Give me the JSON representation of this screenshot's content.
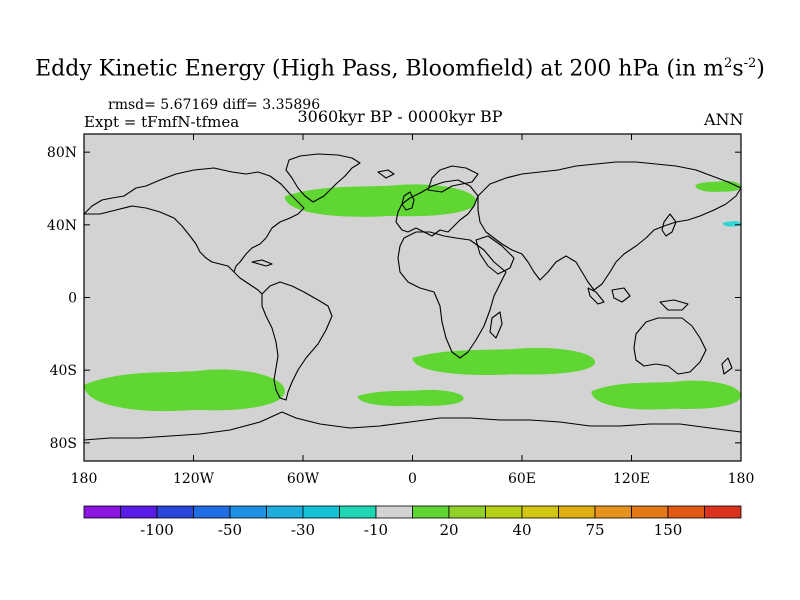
{
  "title": {
    "main": "Eddy Kinetic Energy (High Pass, Bloomfield) at 200 hPa (in m",
    "sup1": "2",
    "s": "s",
    "sup2": "-2",
    "close": ")"
  },
  "stats": "rmsd= 5.67169 diff= 3.35896",
  "expt": "Expt = tFmfN-tfmea",
  "period": "3060kyr BP - 0000kyr BP",
  "season": "ANN",
  "colors": {
    "map_bg": "#d3d3d3",
    "positive_fill": "#5fd631",
    "negative_fill": "#2fd6d6",
    "coast": "#000000"
  },
  "chart_data": {
    "type": "heatmap",
    "subtype": "filled-contour-map",
    "variable": "Eddy Kinetic Energy difference",
    "units": "m2 s-2",
    "level": "200 hPa",
    "xlim": [
      -180,
      180
    ],
    "ylim": [
      -90,
      90
    ],
    "x_ticks": [
      {
        "value": -180,
        "label": "180"
      },
      {
        "value": -120,
        "label": "120W"
      },
      {
        "value": -60,
        "label": "60W"
      },
      {
        "value": 0,
        "label": "0"
      },
      {
        "value": 60,
        "label": "60E"
      },
      {
        "value": 120,
        "label": "120E"
      },
      {
        "value": 180,
        "label": "180"
      }
    ],
    "y_ticks": [
      {
        "value": 80,
        "label": "80N"
      },
      {
        "value": 40,
        "label": "40N"
      },
      {
        "value": 0,
        "label": "0"
      },
      {
        "value": -40,
        "label": "40S"
      },
      {
        "value": -80,
        "label": "80S"
      }
    ],
    "regions": [
      {
        "name": "north-atlantic",
        "category": "10 to 20",
        "lon_range": [
          -70,
          35
        ],
        "lat_range": [
          44,
          62
        ]
      },
      {
        "name": "bering-strait",
        "category": "10 to 20",
        "lon_range": [
          155,
          180
        ],
        "lat_range": [
          58,
          64
        ]
      },
      {
        "name": "north-pacific-edge",
        "category": "-20 to -10",
        "lon_range": [
          170,
          180
        ],
        "lat_range": [
          39,
          42
        ]
      },
      {
        "name": "south-pacific",
        "category": "10 to 20",
        "lon_range": [
          -180,
          -70
        ],
        "lat_range": [
          -63,
          -40
        ]
      },
      {
        "name": "south-atlantic",
        "category": "10 to 20",
        "lon_range": [
          -30,
          28
        ],
        "lat_range": [
          -60,
          -51
        ]
      },
      {
        "name": "south-indian",
        "category": "10 to 20",
        "lon_range": [
          0,
          100
        ],
        "lat_range": [
          -43,
          -28
        ]
      },
      {
        "name": "south-australia",
        "category": "10 to 20",
        "lon_range": [
          98,
          180
        ],
        "lat_range": [
          -62,
          -46
        ]
      }
    ],
    "colorbar": {
      "colors": [
        "#8a14e0",
        "#5a1be6",
        "#2846d9",
        "#1f6ee3",
        "#1e91e6",
        "#1eaedb",
        "#14c4d4",
        "#1ed6b4",
        "#d3d3d3",
        "#5fd631",
        "#91d128",
        "#b7cf14",
        "#d4c514",
        "#dfae14",
        "#e6921e",
        "#e37819",
        "#e05a14",
        "#d9321e"
      ],
      "labels": [
        {
          "index": 2,
          "label": "-100"
        },
        {
          "index": 4,
          "label": "-50"
        },
        {
          "index": 6,
          "label": "-30"
        },
        {
          "index": 8,
          "label": "-10"
        },
        {
          "index": 10,
          "label": "20"
        },
        {
          "index": 12,
          "label": "40"
        },
        {
          "index": 14,
          "label": "75"
        },
        {
          "index": 16,
          "label": "150"
        }
      ]
    }
  }
}
